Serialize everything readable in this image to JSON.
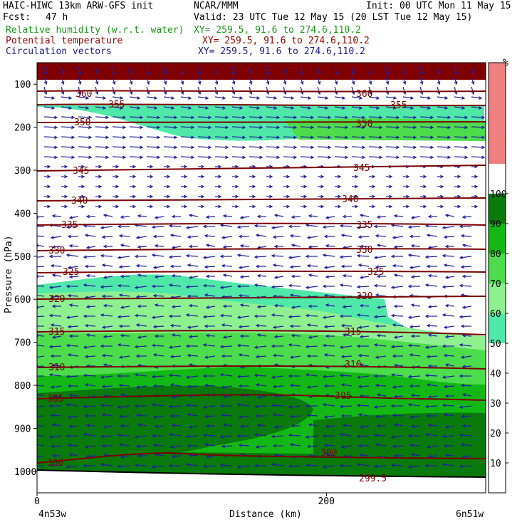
{
  "header": {
    "model_line": "HAIC-HIWC 13km ARW-GFS init",
    "org": "NCAR/MMM",
    "init": "Init: 00 UTC Mon 11 May 15",
    "fcst_label": "Fcst:",
    "fcst_value": "47 h",
    "valid": "Valid: 23 UTC Tue 12 May 15 (20 LST Tue 12 May 15)",
    "fields": [
      {
        "name": "Relative humidity (w.r.t. water)",
        "xy": "XY= 259.5, 91.6 to 274.6,110.2",
        "color": "#1a9a1a"
      },
      {
        "name": "Potential temperature",
        "xy": "XY= 259.5, 91.6 to 274.6,110.2",
        "color": "#9a0000"
      },
      {
        "name": "Circulation vectors",
        "xy": "XY= 259.5, 91.6 to 274.6,110.2",
        "color": "#1a1a8a"
      }
    ]
  },
  "chart_data": {
    "type": "cross-section",
    "xlabel": "Distance (km)",
    "ylabel": "Pressure (hPa)",
    "x_ticks": [
      "0",
      "200"
    ],
    "x_tick_values": [
      0,
      200
    ],
    "xlim": [
      0,
      310
    ],
    "left_endpoint": "4n53w",
    "right_endpoint": "6n51w",
    "y_ticks": [
      "100",
      "200",
      "300",
      "400",
      "500",
      "600",
      "700",
      "800",
      "900",
      "1000"
    ],
    "y_tick_values": [
      100,
      200,
      300,
      400,
      500,
      600,
      700,
      800,
      900,
      1000
    ],
    "ylim": [
      1050,
      50
    ],
    "colorbar": {
      "unit": "%",
      "ticks": [
        "10",
        "20",
        "30",
        "40",
        "50",
        "60",
        "70",
        "80",
        "90",
        "100"
      ],
      "bands": [
        {
          "from": 0,
          "to": 50,
          "color": "#ffffff"
        },
        {
          "from": 50,
          "to": 60,
          "color": "#50e8a8"
        },
        {
          "from": 60,
          "to": 70,
          "color": "#8ef08e"
        },
        {
          "from": 70,
          "to": 80,
          "color": "#4cdc4c"
        },
        {
          "from": 80,
          "to": 90,
          "color": "#14b814"
        },
        {
          "from": 90,
          "to": 100,
          "color": "#0a7a0a"
        },
        {
          "from": 100,
          "to": 110,
          "color": "#f08080"
        }
      ]
    },
    "theta_contours": [
      {
        "label": "360",
        "p": 128
      },
      {
        "label": "355",
        "p": 147
      },
      {
        "label": "350",
        "p": 190
      },
      {
        "label": "345",
        "p": 293
      },
      {
        "label": "340",
        "p": 370
      },
      {
        "label": "335",
        "p": 425
      },
      {
        "label": "330",
        "p": 480
      },
      {
        "label": "325",
        "p": 535
      },
      {
        "label": "320",
        "p": 595
      },
      {
        "label": "315",
        "p": 675
      },
      {
        "label": "310",
        "p": 755
      },
      {
        "label": "305",
        "p": 825
      },
      {
        "label": "300",
        "p": 970
      },
      {
        "label": "299.5",
        "p": 1010
      }
    ]
  }
}
